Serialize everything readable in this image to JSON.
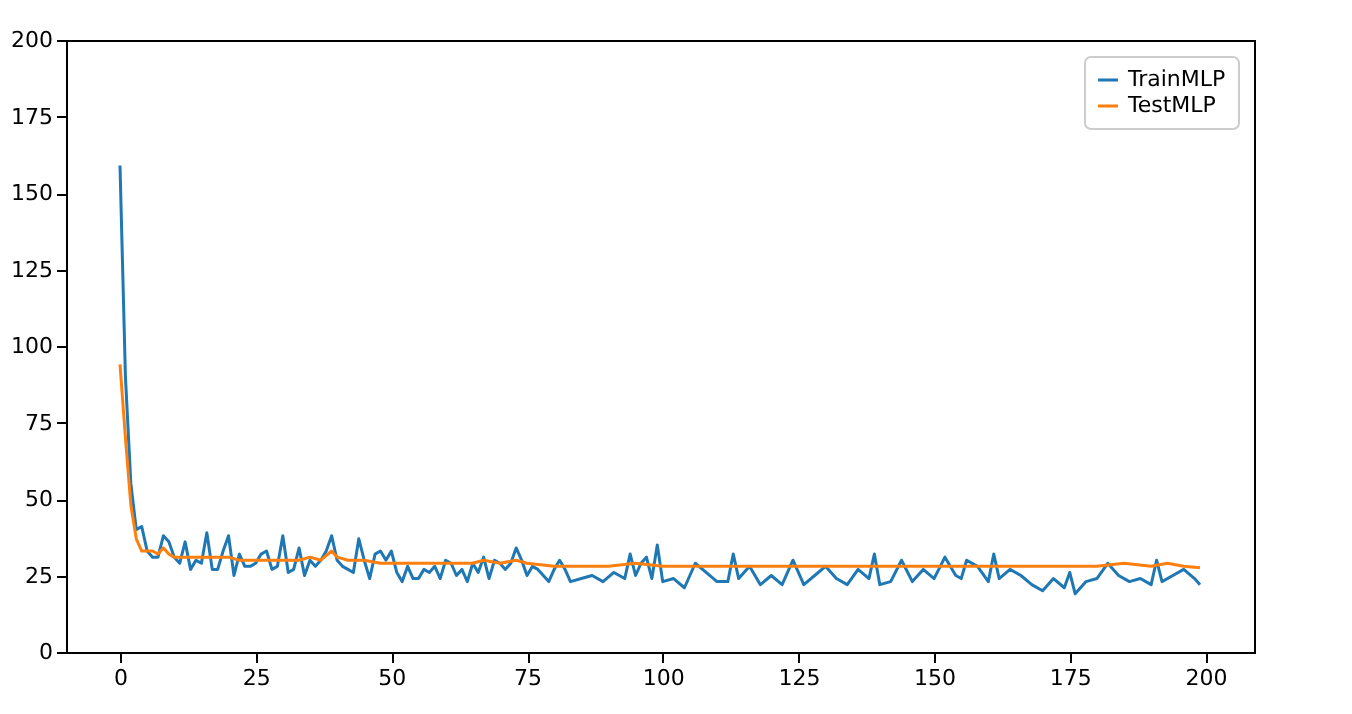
{
  "chart_data": {
    "type": "line",
    "xlim": [
      -9.95,
      208.95
    ],
    "ylim": [
      0,
      200
    ],
    "xticks": [
      0,
      25,
      50,
      75,
      100,
      125,
      150,
      175,
      200
    ],
    "yticks": [
      0,
      25,
      50,
      75,
      100,
      125,
      150,
      175,
      200
    ],
    "grid": false,
    "legend": "top right",
    "series": [
      {
        "name": "TrainMLP",
        "color": "#1f77b4",
        "x": [
          0,
          1,
          2,
          3,
          4,
          5,
          6,
          7,
          8,
          9,
          10,
          11,
          12,
          13,
          14,
          15,
          16,
          17,
          18,
          19,
          20,
          21,
          22,
          23,
          24,
          25,
          26,
          27,
          28,
          29,
          30,
          31,
          32,
          33,
          34,
          35,
          36,
          37,
          38,
          39,
          40,
          41,
          42,
          43,
          44,
          45,
          46,
          47,
          48,
          49,
          50,
          51,
          52,
          53,
          54,
          55,
          56,
          57,
          58,
          59,
          60,
          61,
          62,
          63,
          64,
          65,
          66,
          67,
          68,
          69,
          70,
          71,
          72,
          73,
          74,
          75,
          76,
          77,
          78,
          79,
          80,
          81,
          82,
          83,
          85,
          87,
          89,
          91,
          93,
          94,
          95,
          96,
          97,
          98,
          99,
          100,
          102,
          104,
          106,
          108,
          110,
          112,
          113,
          114,
          116,
          118,
          120,
          122,
          124,
          126,
          128,
          130,
          132,
          134,
          136,
          138,
          139,
          140,
          142,
          144,
          146,
          148,
          150,
          152,
          154,
          155,
          156,
          158,
          160,
          161,
          162,
          164,
          166,
          168,
          170,
          172,
          174,
          175,
          176,
          178,
          180,
          182,
          184,
          186,
          188,
          190,
          191,
          192,
          194,
          196,
          198,
          199
        ],
        "values": [
          159,
          90,
          55,
          40,
          41,
          33,
          31,
          31,
          38,
          36,
          31,
          29,
          36,
          27,
          30,
          29,
          39,
          27,
          27,
          33,
          38,
          25,
          32,
          28,
          28,
          29,
          32,
          33,
          27,
          28,
          38,
          26,
          27,
          34,
          25,
          30,
          28,
          30,
          33,
          38,
          30,
          28,
          27,
          26,
          37,
          30,
          24,
          32,
          33,
          30,
          33,
          26,
          23,
          28,
          24,
          24,
          27,
          26,
          28,
          24,
          30,
          29,
          25,
          27,
          23,
          29,
          26,
          31,
          24,
          30,
          29,
          27,
          29,
          34,
          30,
          25,
          28,
          27,
          25,
          23,
          27,
          30,
          27,
          23,
          24,
          25,
          23,
          26,
          24,
          32,
          25,
          29,
          31,
          24,
          35,
          23,
          24,
          21,
          29,
          26,
          23,
          23,
          32,
          24,
          28,
          22,
          25,
          22,
          30,
          22,
          25,
          28,
          24,
          22,
          27,
          24,
          32,
          22,
          23,
          30,
          23,
          27,
          24,
          31,
          25,
          24,
          30,
          28,
          23,
          32,
          24,
          27,
          25,
          22,
          20,
          24,
          21,
          26,
          19,
          23,
          24,
          29,
          25,
          23,
          24,
          22,
          30,
          23,
          25,
          27,
          24,
          22
        ]
      },
      {
        "name": "TestMLP",
        "color": "#ff7f0e",
        "x": [
          0,
          1,
          2,
          3,
          4,
          5,
          6,
          7,
          8,
          9,
          10,
          12,
          15,
          18,
          20,
          22,
          25,
          27,
          30,
          33,
          35,
          37,
          39,
          40,
          42,
          45,
          48,
          50,
          55,
          60,
          65,
          67,
          70,
          73,
          75,
          80,
          85,
          90,
          95,
          100,
          110,
          120,
          130,
          140,
          150,
          160,
          170,
          180,
          185,
          190,
          193,
          196,
          199
        ],
        "values": [
          94,
          70,
          48,
          37,
          33,
          33,
          33,
          32,
          34,
          32,
          31,
          31,
          31,
          31,
          31,
          30,
          30,
          30,
          30,
          30,
          31,
          30,
          33,
          31,
          30,
          30,
          29,
          29,
          29,
          29,
          29,
          30,
          29,
          30,
          29,
          28,
          28,
          28,
          29,
          28,
          28,
          28,
          28,
          28,
          28,
          28,
          28,
          28,
          29,
          28,
          29,
          28,
          27.5
        ]
      }
    ]
  }
}
